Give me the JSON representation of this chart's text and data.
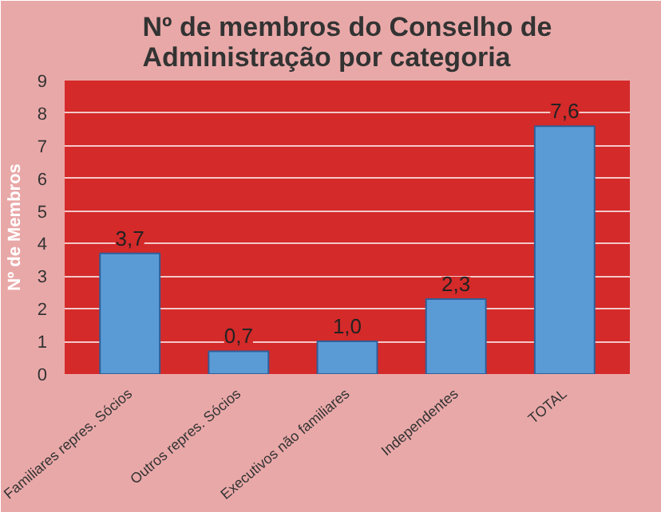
{
  "chart_data": {
    "type": "bar",
    "title": "Nº de membros do Conselho de Administração por categoria",
    "ylabel": "Nº de Membros",
    "categories": [
      "Familiares repres. Sócios",
      "Outros repres. Sócios",
      "Executivos não familiares",
      "Independentes",
      "TOTAL"
    ],
    "values": [
      3.7,
      0.7,
      1.0,
      2.3,
      7.6
    ],
    "value_labels": [
      "3,7",
      "0,7",
      "1,0",
      "2,3",
      "7,6"
    ],
    "color": "#5b9bd5",
    "ylim": [
      0,
      9
    ],
    "yticks": [
      0,
      1,
      2,
      3,
      4,
      5,
      6,
      7,
      8,
      9
    ],
    "grid": "y"
  }
}
